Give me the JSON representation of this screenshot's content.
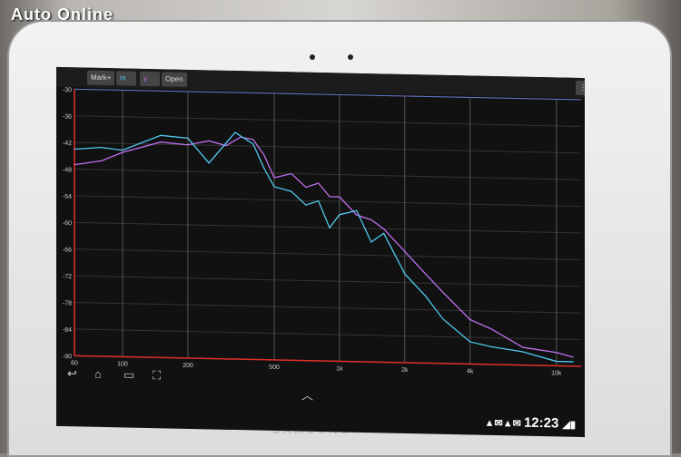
{
  "watermark": "Auto Online",
  "device_brand": "SAMSUNG",
  "toolbar": {
    "mark": "Mark+",
    "m": "m",
    "y": "y",
    "open": "Open",
    "menu_icon": "overflow-menu-icon"
  },
  "status_bar": {
    "time": "12:23",
    "icons": [
      "warning-icon",
      "email-icon",
      "warning-icon",
      "email-icon",
      "wifi-icon",
      "signal-icon",
      "battery-icon"
    ]
  },
  "nav_bar": {
    "icons": [
      "back-icon",
      "home-icon",
      "recent-apps-icon",
      "screenshot-icon",
      "chevron-up-icon"
    ]
  },
  "chart_data": {
    "type": "line",
    "xscale": "log",
    "xlim": [
      60,
      13000
    ],
    "ylim": [
      -90,
      -30
    ],
    "xticks": [
      {
        "v": 60,
        "label": "60"
      },
      {
        "v": 100,
        "label": "100"
      },
      {
        "v": 200,
        "label": "200"
      },
      {
        "v": 500,
        "label": "500"
      },
      {
        "v": 1000,
        "label": "1k"
      },
      {
        "v": 2000,
        "label": "2k"
      },
      {
        "v": 4000,
        "label": "4k"
      },
      {
        "v": 10000,
        "label": "10k"
      }
    ],
    "yticks": [
      -30,
      -36,
      -42,
      -48,
      -54,
      -60,
      -66,
      -72,
      -78,
      -84,
      -90
    ],
    "grid": true,
    "series": [
      {
        "color": "#c070f0",
        "x": [
          60,
          80,
          100,
          150,
          200,
          250,
          300,
          350,
          400,
          450,
          500,
          600,
          700,
          800,
          900,
          1000,
          1200,
          1400,
          1600,
          2000,
          2500,
          3000,
          4000,
          5000,
          7000,
          10000,
          12000
        ],
        "y": [
          -47,
          -46,
          -44,
          -41.5,
          -42,
          -41,
          -42,
          -40,
          -40.5,
          -44,
          -49,
          -48,
          -51,
          -50,
          -53,
          -53,
          -57,
          -58,
          -60,
          -65,
          -70,
          -74,
          -80,
          -82,
          -86,
          -87,
          -88
        ]
      },
      {
        "color": "#50c8f0",
        "x": [
          60,
          80,
          100,
          150,
          200,
          250,
          330,
          400,
          450,
          500,
          600,
          700,
          800,
          900,
          1000,
          1200,
          1400,
          1600,
          2000,
          2500,
          3000,
          4000,
          5000,
          7000,
          10000,
          12000
        ],
        "y": [
          -43.5,
          -43,
          -43.5,
          -40,
          -40.5,
          -46,
          -39,
          -41.5,
          -47,
          -51,
          -52,
          -55,
          -54,
          -60,
          -57,
          -56,
          -63,
          -61,
          -70,
          -75,
          -80,
          -85,
          -86,
          -87,
          -89,
          -89
        ]
      }
    ]
  }
}
